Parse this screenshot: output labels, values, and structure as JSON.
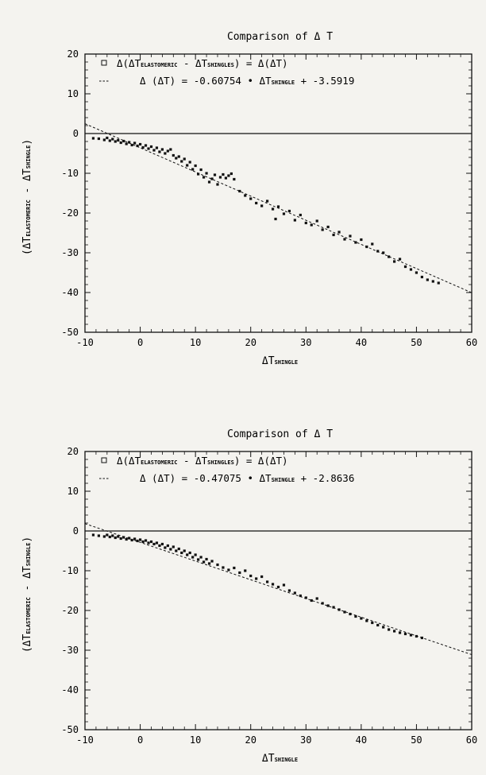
{
  "chart_data": [
    {
      "type": "scatter",
      "title": "Comparison of Δ T",
      "xlabel_main": "ΔT",
      "xlabel_sub": "SHINGLE",
      "ylabel_main_a": "(ΔT",
      "ylabel_sub_a": "ELASTOMERIC",
      "ylabel_mid": " - ΔT",
      "ylabel_sub_b": "SHINGLE",
      "ylabel_end": ")",
      "xlim": [
        -10,
        60
      ],
      "ylim": [
        -50,
        20
      ],
      "xticks": [
        "-10",
        "0",
        "10",
        "20",
        "30",
        "40",
        "50",
        "60"
      ],
      "yticks": [
        "-50",
        "-40",
        "-30",
        "-20",
        "-10",
        "0",
        "10",
        "20"
      ],
      "legend": {
        "placement": "top-left",
        "entry1": {
          "marker": "open-square",
          "t1": "Δ(ΔT",
          "s1": "ELASTOMERIC",
          "t2": " - ΔT",
          "s2": "SHINGLES",
          "t3": ") = Δ(ΔT)"
        },
        "entry2": {
          "marker": "dashed-line",
          "t1": "Δ (ΔT) = -0.60754 • ΔT",
          "s1": "SHINGLE",
          "t2": " + -3.5919"
        }
      },
      "fit": {
        "slope": -0.60754,
        "intercept": -3.5919
      },
      "zero_line": true,
      "points": [
        [
          -8.5,
          -1.2
        ],
        [
          -7.5,
          -1.3
        ],
        [
          -6.5,
          -1.6
        ],
        [
          -6.0,
          -1.1
        ],
        [
          -5.5,
          -1.8
        ],
        [
          -5.0,
          -1.4
        ],
        [
          -4.5,
          -2.0
        ],
        [
          -4.0,
          -1.7
        ],
        [
          -3.5,
          -2.3
        ],
        [
          -3.0,
          -1.9
        ],
        [
          -2.5,
          -2.6
        ],
        [
          -2.0,
          -2.2
        ],
        [
          -1.5,
          -2.9
        ],
        [
          -1.0,
          -2.4
        ],
        [
          -0.5,
          -3.1
        ],
        [
          0.0,
          -2.7
        ],
        [
          0.5,
          -3.5
        ],
        [
          1.0,
          -3.0
        ],
        [
          1.5,
          -3.8
        ],
        [
          2.0,
          -3.3
        ],
        [
          2.5,
          -4.2
        ],
        [
          3.0,
          -3.6
        ],
        [
          3.5,
          -4.6
        ],
        [
          4.0,
          -4.0
        ],
        [
          4.5,
          -5.0
        ],
        [
          5.0,
          -4.4
        ],
        [
          5.5,
          -4.0
        ],
        [
          6.0,
          -5.5
        ],
        [
          6.5,
          -6.2
        ],
        [
          7.0,
          -5.8
        ],
        [
          7.5,
          -7.0
        ],
        [
          8.0,
          -6.4
        ],
        [
          8.5,
          -8.0
        ],
        [
          9.0,
          -7.2
        ],
        [
          9.5,
          -9.0
        ],
        [
          10.0,
          -8.1
        ],
        [
          10.5,
          -10.2
        ],
        [
          11.0,
          -9.1
        ],
        [
          11.5,
          -11.0
        ],
        [
          12.0,
          -10.0
        ],
        [
          12.5,
          -12.2
        ],
        [
          13.0,
          -11.4
        ],
        [
          13.5,
          -10.4
        ],
        [
          14.0,
          -12.8
        ],
        [
          14.5,
          -11.0
        ],
        [
          15.0,
          -10.3
        ],
        [
          15.5,
          -11.2
        ],
        [
          16.0,
          -10.6
        ],
        [
          16.5,
          -10.1
        ],
        [
          17.0,
          -11.5
        ],
        [
          18.0,
          -14.5
        ],
        [
          19.0,
          -15.6
        ],
        [
          20.0,
          -16.4
        ],
        [
          21.0,
          -17.5
        ],
        [
          22.0,
          -18.2
        ],
        [
          23.0,
          -17.0
        ],
        [
          24.0,
          -19.0
        ],
        [
          24.5,
          -21.5
        ],
        [
          25.0,
          -18.4
        ],
        [
          26.0,
          -20.2
        ],
        [
          27.0,
          -19.5
        ],
        [
          28.0,
          -21.8
        ],
        [
          29.0,
          -20.5
        ],
        [
          30.0,
          -22.5
        ],
        [
          31.0,
          -23.0
        ],
        [
          32.0,
          -22.0
        ],
        [
          33.0,
          -24.2
        ],
        [
          34.0,
          -23.5
        ],
        [
          35.0,
          -25.5
        ],
        [
          36.0,
          -24.8
        ],
        [
          37.0,
          -26.6
        ],
        [
          38.0,
          -25.8
        ],
        [
          39.0,
          -27.4
        ],
        [
          40.0,
          -26.7
        ],
        [
          41.0,
          -28.5
        ],
        [
          42.0,
          -27.8
        ],
        [
          43.0,
          -29.6
        ],
        [
          44.0,
          -30.0
        ],
        [
          45.0,
          -31.0
        ],
        [
          46.0,
          -32.2
        ],
        [
          47.0,
          -31.6
        ],
        [
          48.0,
          -33.5
        ],
        [
          49.0,
          -34.2
        ],
        [
          50.0,
          -35.0
        ],
        [
          51.0,
          -36.1
        ],
        [
          52.0,
          -36.8
        ],
        [
          53.0,
          -37.2
        ],
        [
          54.0,
          -37.6
        ]
      ]
    },
    {
      "type": "scatter",
      "title": "Comparison of Δ T",
      "xlabel_main": "ΔT",
      "xlabel_sub": "SHINGLE",
      "ylabel_main_a": "(ΔT",
      "ylabel_sub_a": "ELASTOMERIC",
      "ylabel_mid": " - ΔT",
      "ylabel_sub_b": "SHINGLE",
      "ylabel_end": ")",
      "xlim": [
        -10,
        60
      ],
      "ylim": [
        -50,
        20
      ],
      "xticks": [
        "-10",
        "0",
        "10",
        "20",
        "30",
        "40",
        "50",
        "60"
      ],
      "yticks": [
        "-50",
        "-40",
        "-30",
        "-20",
        "-10",
        "0",
        "10",
        "20"
      ],
      "legend": {
        "placement": "top-left",
        "entry1": {
          "marker": "open-square",
          "t1": "Δ(ΔT",
          "s1": "ELASTOMERIC",
          "t2": " - ΔT",
          "s2": "SHINGLES",
          "t3": ") = Δ(ΔT)"
        },
        "entry2": {
          "marker": "dashed-line",
          "t1": "Δ (ΔT) = -0.47075 • ΔT",
          "s1": "SHINGLE",
          "t2": " + -2.8636"
        }
      },
      "fit": {
        "slope": -0.47075,
        "intercept": -2.8636
      },
      "zero_line": true,
      "points": [
        [
          -8.5,
          -1.0
        ],
        [
          -7.5,
          -1.2
        ],
        [
          -6.5,
          -1.4
        ],
        [
          -6.0,
          -1.0
        ],
        [
          -5.5,
          -1.5
        ],
        [
          -5.0,
          -1.2
        ],
        [
          -4.5,
          -1.7
        ],
        [
          -4.0,
          -1.4
        ],
        [
          -3.5,
          -1.9
        ],
        [
          -3.0,
          -1.6
        ],
        [
          -2.5,
          -2.1
        ],
        [
          -2.0,
          -1.8
        ],
        [
          -1.5,
          -2.3
        ],
        [
          -1.0,
          -2.0
        ],
        [
          -0.5,
          -2.5
        ],
        [
          0.0,
          -2.2
        ],
        [
          0.5,
          -2.7
        ],
        [
          1.0,
          -2.4
        ],
        [
          1.5,
          -3.0
        ],
        [
          2.0,
          -2.7
        ],
        [
          2.5,
          -3.3
        ],
        [
          3.0,
          -3.0
        ],
        [
          3.5,
          -3.7
        ],
        [
          4.0,
          -3.3
        ],
        [
          4.5,
          -4.2
        ],
        [
          5.0,
          -3.7
        ],
        [
          5.5,
          -4.6
        ],
        [
          6.0,
          -4.0
        ],
        [
          6.5,
          -5.0
        ],
        [
          7.0,
          -4.5
        ],
        [
          7.5,
          -5.5
        ],
        [
          8.0,
          -5.0
        ],
        [
          8.5,
          -6.0
        ],
        [
          9.0,
          -5.5
        ],
        [
          9.5,
          -6.6
        ],
        [
          10.0,
          -6.0
        ],
        [
          10.5,
          -7.2
        ],
        [
          11.0,
          -6.6
        ],
        [
          11.5,
          -7.8
        ],
        [
          12.0,
          -7.1
        ],
        [
          12.5,
          -8.2
        ],
        [
          13.0,
          -7.6
        ],
        [
          14.0,
          -8.5
        ],
        [
          15.0,
          -9.2
        ],
        [
          16.0,
          -9.8
        ],
        [
          17.0,
          -9.3
        ],
        [
          18.0,
          -10.5
        ],
        [
          19.0,
          -10.0
        ],
        [
          20.0,
          -11.3
        ],
        [
          21.0,
          -12.0
        ],
        [
          22.0,
          -11.5
        ],
        [
          23.0,
          -12.8
        ],
        [
          24.0,
          -13.4
        ],
        [
          25.0,
          -14.1
        ],
        [
          26.0,
          -13.6
        ],
        [
          27.0,
          -15.0
        ],
        [
          28.0,
          -15.6
        ],
        [
          29.0,
          -16.3
        ],
        [
          30.0,
          -16.8
        ],
        [
          31.0,
          -17.5
        ],
        [
          32.0,
          -17.0
        ],
        [
          33.0,
          -18.2
        ],
        [
          34.0,
          -18.8
        ],
        [
          35.0,
          -19.2
        ],
        [
          36.0,
          -19.8
        ],
        [
          37.0,
          -20.4
        ],
        [
          38.0,
          -20.9
        ],
        [
          39.0,
          -21.5
        ],
        [
          40.0,
          -22.0
        ],
        [
          41.0,
          -22.6
        ],
        [
          42.0,
          -23.1
        ],
        [
          43.0,
          -23.7
        ],
        [
          44.0,
          -24.2
        ],
        [
          45.0,
          -24.8
        ],
        [
          46.0,
          -25.2
        ],
        [
          47.0,
          -25.6
        ],
        [
          48.0,
          -25.9
        ],
        [
          49.0,
          -26.2
        ],
        [
          50.0,
          -26.5
        ],
        [
          51.0,
          -26.9
        ]
      ]
    }
  ]
}
